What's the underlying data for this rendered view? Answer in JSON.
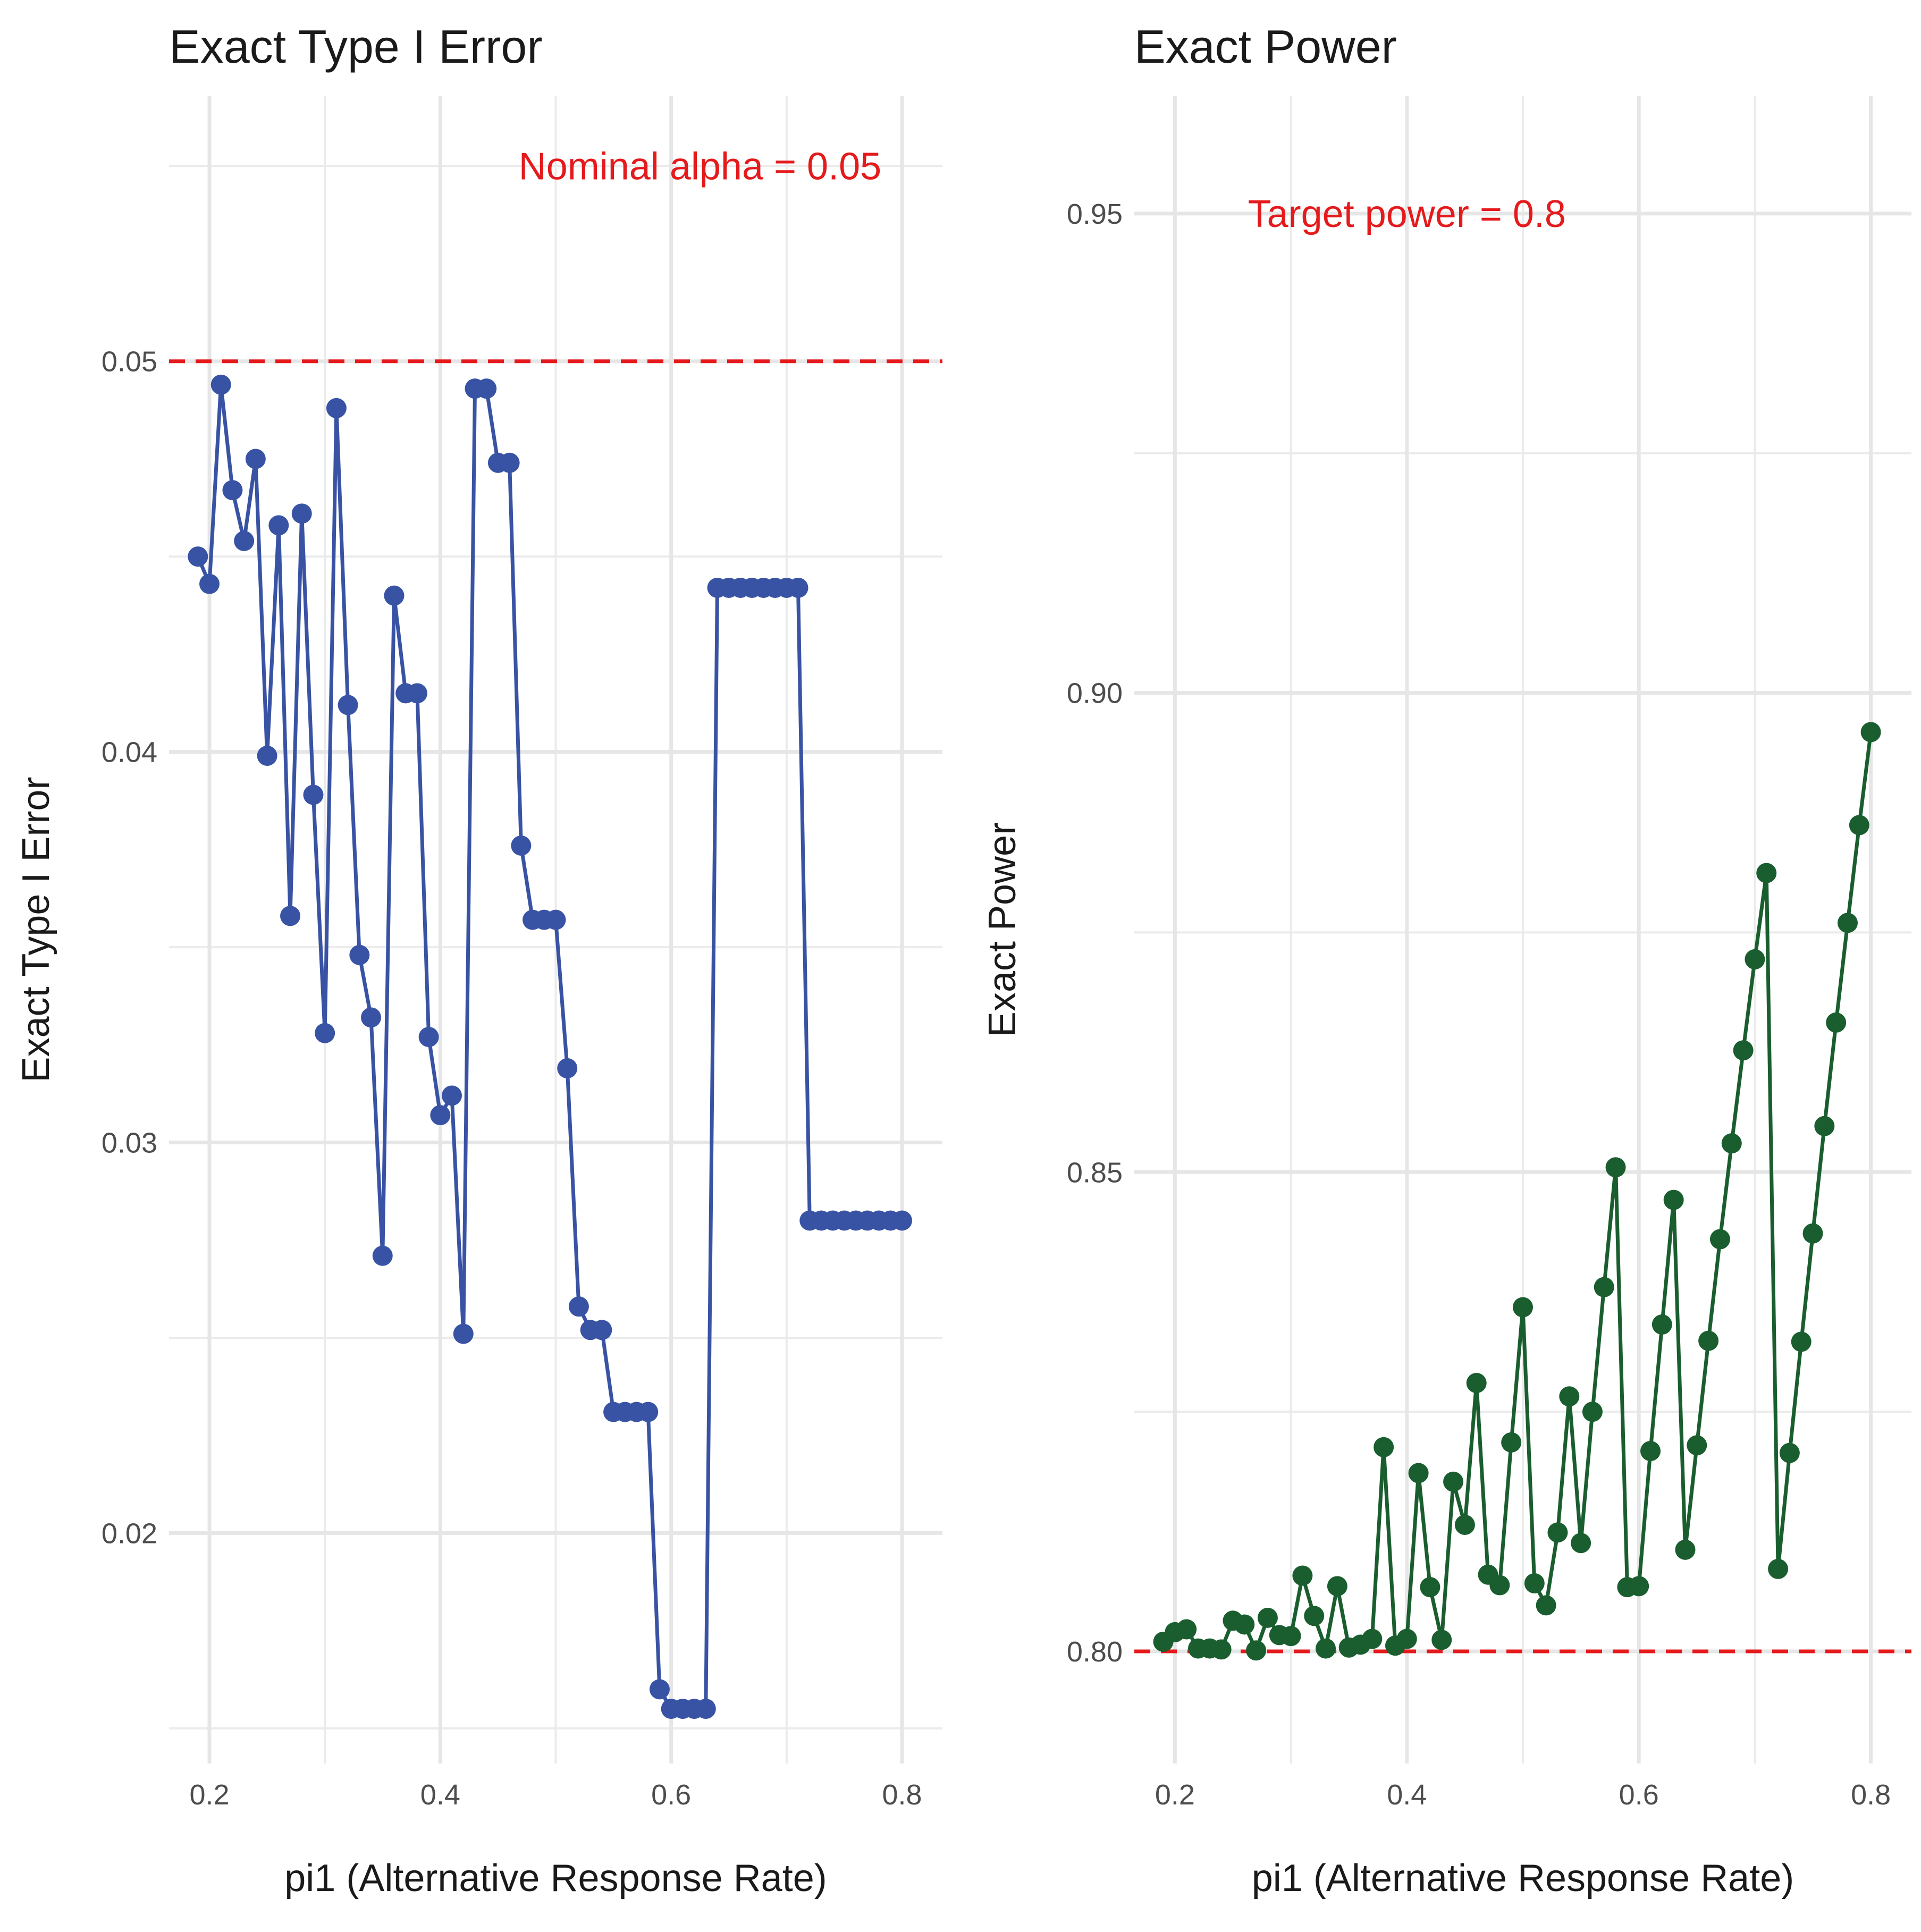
{
  "chart_data": [
    {
      "type": "line",
      "title": "Exact Type I Error",
      "xlabel": "pi1 (Alternative Response Rate)",
      "ylabel": "Exact Type I Error",
      "xlim": [
        0.165,
        0.835
      ],
      "ylim": [
        0.0141,
        0.0568
      ],
      "xticks": [
        0.2,
        0.4,
        0.6,
        0.8
      ],
      "xtick_labels": [
        "0.2",
        "0.4",
        "0.6",
        "0.8"
      ],
      "yticks": [
        0.02,
        0.03,
        0.04,
        0.05
      ],
      "ytick_labels": [
        "0.02",
        "0.03",
        "0.04",
        "0.05"
      ],
      "x_minor_gridlines": [
        0.3,
        0.5,
        0.7
      ],
      "y_minor_gridlines": [
        0.015,
        0.025,
        0.035,
        0.045,
        0.055
      ],
      "grid": true,
      "reference_line": {
        "y": 0.05,
        "style": "dashed",
        "color": "#e41a1c"
      },
      "annotation": {
        "text": "Nominal alpha = 0.05",
        "x": 0.625,
        "y": 0.055,
        "color": "#e41a1c"
      },
      "series": [
        {
          "color": "#3953a4",
          "x": [
            0.19,
            0.2,
            0.21,
            0.22,
            0.23,
            0.24,
            0.25,
            0.26,
            0.27,
            0.28,
            0.29,
            0.3,
            0.31,
            0.32,
            0.33,
            0.34,
            0.35,
            0.36,
            0.37,
            0.38,
            0.39,
            0.4,
            0.41,
            0.42,
            0.43,
            0.44,
            0.45,
            0.46,
            0.47,
            0.48,
            0.49,
            0.5,
            0.51,
            0.52,
            0.53,
            0.54,
            0.55,
            0.56,
            0.57,
            0.58,
            0.59,
            0.6,
            0.61,
            0.62,
            0.63,
            0.64,
            0.65,
            0.66,
            0.67,
            0.68,
            0.69,
            0.7,
            0.71,
            0.72,
            0.73,
            0.74,
            0.75,
            0.76,
            0.77,
            0.78,
            0.79,
            0.8
          ],
          "values": [
            0.045,
            0.0443,
            0.0494,
            0.0467,
            0.0454,
            0.0475,
            0.0399,
            0.0458,
            0.0358,
            0.0461,
            0.0389,
            0.0328,
            0.0488,
            0.0412,
            0.0348,
            0.0332,
            0.0271,
            0.044,
            0.0415,
            0.0415,
            0.0327,
            0.0307,
            0.0312,
            0.0251,
            0.0493,
            0.0493,
            0.0474,
            0.0474,
            0.0376,
            0.0357,
            0.0357,
            0.0357,
            0.0319,
            0.0258,
            0.0252,
            0.0252,
            0.0231,
            0.0231,
            0.0231,
            0.0231,
            0.016,
            0.0155,
            0.0155,
            0.0155,
            0.0155,
            0.0442,
            0.0442,
            0.0442,
            0.0442,
            0.0442,
            0.0442,
            0.0442,
            0.0442,
            0.028,
            0.028,
            0.028,
            0.028,
            0.028,
            0.028,
            0.028,
            0.028,
            0.028
          ]
        }
      ]
    },
    {
      "type": "line",
      "title": "Exact Power",
      "xlabel": "pi1 (Alternative Response Rate)",
      "ylabel": "Exact Power",
      "xlim": [
        0.165,
        0.835
      ],
      "ylim": [
        0.7883,
        0.9623
      ],
      "xticks": [
        0.2,
        0.4,
        0.6,
        0.8
      ],
      "xtick_labels": [
        "0.2",
        "0.4",
        "0.6",
        "0.8"
      ],
      "yticks": [
        0.8,
        0.85,
        0.9,
        0.95
      ],
      "ytick_labels": [
        "0.80",
        "0.85",
        "0.90",
        "0.95"
      ],
      "x_minor_gridlines": [
        0.3,
        0.5,
        0.7
      ],
      "y_minor_gridlines": [
        0.825,
        0.875,
        0.925
      ],
      "grid": true,
      "reference_line": {
        "y": 0.8,
        "style": "dashed",
        "color": "#e41a1c"
      },
      "annotation": {
        "text": "Target power = 0.8",
        "x": 0.4,
        "y": 0.95,
        "color": "#e41a1c"
      },
      "series": [
        {
          "color": "#1a5e2f",
          "x": [
            0.19,
            0.2,
            0.21,
            0.22,
            0.23,
            0.24,
            0.25,
            0.26,
            0.27,
            0.28,
            0.29,
            0.3,
            0.31,
            0.32,
            0.33,
            0.34,
            0.35,
            0.36,
            0.37,
            0.38,
            0.39,
            0.4,
            0.41,
            0.42,
            0.43,
            0.44,
            0.45,
            0.46,
            0.47,
            0.48,
            0.49,
            0.5,
            0.51,
            0.52,
            0.53,
            0.54,
            0.55,
            0.56,
            0.57,
            0.58,
            0.59,
            0.6,
            0.61,
            0.62,
            0.63,
            0.64,
            0.65,
            0.66,
            0.67,
            0.68,
            0.69,
            0.7,
            0.71,
            0.72,
            0.73,
            0.74,
            0.75,
            0.76,
            0.77,
            0.78,
            0.79,
            0.8
          ],
          "values": [
            0.801,
            0.802,
            0.8023,
            0.8003,
            0.8003,
            0.8002,
            0.8032,
            0.8028,
            0.8001,
            0.8035,
            0.8017,
            0.8016,
            0.8079,
            0.8037,
            0.8003,
            0.8068,
            0.8004,
            0.8007,
            0.8013,
            0.8213,
            0.8006,
            0.8013,
            0.8186,
            0.8067,
            0.8012,
            0.8177,
            0.8132,
            0.828,
            0.808,
            0.8069,
            0.8218,
            0.8359,
            0.8071,
            0.8048,
            0.8124,
            0.8266,
            0.8113,
            0.825,
            0.838,
            0.8505,
            0.8067,
            0.8068,
            0.8209,
            0.8341,
            0.8471,
            0.8106,
            0.8215,
            0.8324,
            0.843,
            0.853,
            0.8627,
            0.8722,
            0.8812,
            0.8086,
            0.8207,
            0.8323,
            0.8436,
            0.8548,
            0.8656,
            0.876,
            0.8862,
            0.8959
          ]
        }
      ]
    }
  ]
}
